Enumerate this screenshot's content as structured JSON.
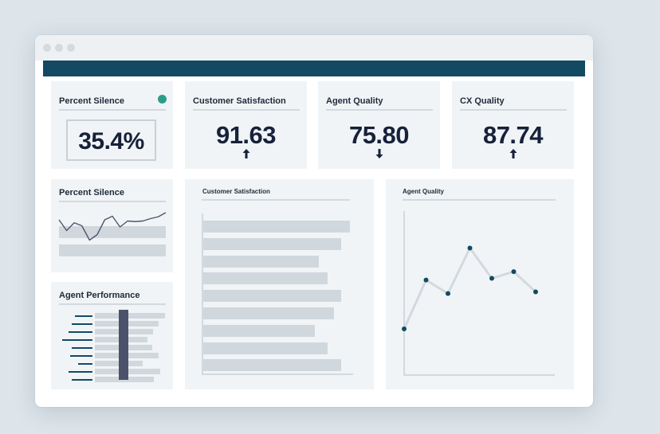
{
  "kpi_cards": [
    {
      "title": "Percent Silence",
      "value": "35.4%",
      "indicator_color": "#2a9d8a"
    },
    {
      "title": "Customer Satisfaction",
      "value": "91.63",
      "trend": "up"
    },
    {
      "title": "Agent Quality",
      "value": "75.80",
      "trend": "down"
    },
    {
      "title": "CX Quality",
      "value": "87.74",
      "trend": "up"
    }
  ],
  "panels": {
    "percent_silence": {
      "title": "Percent Silence",
      "line_values": [
        60,
        42,
        55,
        50,
        26,
        35,
        60,
        66,
        48,
        58,
        57,
        58,
        62,
        65,
        72
      ]
    },
    "agent_performance": {
      "title": "Agent Performance"
    },
    "customer_satisfaction": {
      "title": "Customer Satisfaction",
      "bar_values": [
        100,
        94,
        79,
        85,
        94,
        89,
        76,
        85,
        94
      ]
    },
    "agent_quality": {
      "title": "Agent Quality",
      "line_values": [
        0.18,
        0.47,
        0.39,
        0.66,
        0.48,
        0.52,
        0.4
      ]
    }
  },
  "colors": {
    "appbar": "#134963",
    "card_bg": "#f1f4f6",
    "bar": "#d0d8de",
    "line_dark": "#4e566d",
    "point": "#134963",
    "highlight_bar": "#4c526b"
  }
}
